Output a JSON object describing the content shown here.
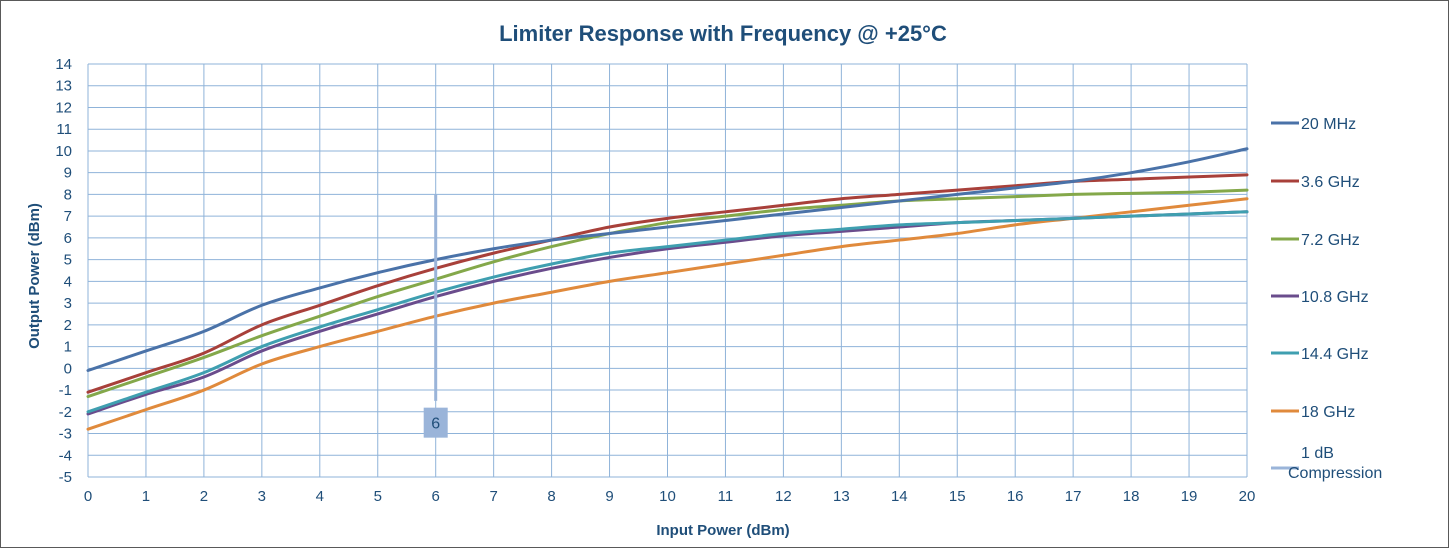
{
  "chart_data": {
    "type": "line",
    "title": "Limiter Response with Frequency @ +25°C",
    "xlabel": "Input Power (dBm)",
    "ylabel": "Output Power (dBm)",
    "xlim": [
      0,
      20
    ],
    "ylim": [
      -5,
      14
    ],
    "x_ticks": [
      0,
      1,
      2,
      3,
      4,
      5,
      6,
      7,
      8,
      9,
      10,
      11,
      12,
      13,
      14,
      15,
      16,
      17,
      18,
      19,
      20
    ],
    "y_ticks": [
      -5,
      -4,
      -3,
      -2,
      -1,
      0,
      1,
      2,
      3,
      4,
      5,
      6,
      7,
      8,
      9,
      10,
      11,
      12,
      13,
      14
    ],
    "grid": true,
    "legend_position": "right",
    "x": [
      0,
      1,
      2,
      3,
      4,
      5,
      6,
      7,
      8,
      9,
      10,
      11,
      12,
      13,
      14,
      15,
      16,
      17,
      18,
      19,
      20
    ],
    "series": [
      {
        "name": "20 MHz",
        "color": "#4a72a8",
        "values": [
          -0.1,
          0.8,
          1.7,
          2.9,
          3.7,
          4.4,
          5.0,
          5.5,
          5.9,
          6.2,
          6.5,
          6.8,
          7.1,
          7.4,
          7.7,
          8.0,
          8.3,
          8.6,
          9.0,
          9.5,
          10.1
        ]
      },
      {
        "name": "3.6 GHz",
        "color": "#a8403a",
        "values": [
          -1.1,
          -0.2,
          0.7,
          2.0,
          2.9,
          3.8,
          4.6,
          5.3,
          5.9,
          6.5,
          6.9,
          7.2,
          7.5,
          7.8,
          8.0,
          8.2,
          8.4,
          8.6,
          8.7,
          8.8,
          8.9
        ]
      },
      {
        "name": "7.2 GHz",
        "color": "#84a84a",
        "values": [
          -1.3,
          -0.4,
          0.5,
          1.5,
          2.4,
          3.3,
          4.1,
          4.9,
          5.6,
          6.2,
          6.7,
          7.0,
          7.3,
          7.5,
          7.7,
          7.8,
          7.9,
          8.0,
          8.05,
          8.1,
          8.2
        ]
      },
      {
        "name": "10.8 GHz",
        "color": "#6a4c8c",
        "values": [
          -2.1,
          -1.2,
          -0.4,
          0.8,
          1.7,
          2.5,
          3.3,
          4.0,
          4.6,
          5.1,
          5.5,
          5.8,
          6.1,
          6.3,
          6.5,
          6.7,
          6.8,
          6.9,
          7.0,
          7.1,
          7.2
        ]
      },
      {
        "name": "14.4 GHz",
        "color": "#3f9fb0",
        "values": [
          -2.0,
          -1.1,
          -0.2,
          1.0,
          1.9,
          2.7,
          3.5,
          4.2,
          4.8,
          5.3,
          5.6,
          5.9,
          6.2,
          6.4,
          6.6,
          6.7,
          6.8,
          6.9,
          7.0,
          7.1,
          7.2
        ]
      },
      {
        "name": "18 GHz",
        "color": "#e08a3c",
        "values": [
          -2.8,
          -1.9,
          -1.0,
          0.2,
          1.0,
          1.7,
          2.4,
          3.0,
          3.5,
          4.0,
          4.4,
          4.8,
          5.2,
          5.6,
          5.9,
          6.2,
          6.6,
          6.9,
          7.2,
          7.5,
          7.8
        ]
      }
    ],
    "compression_marker": {
      "name": "1 dB Compression",
      "legend_label_lines": [
        "1 dB",
        "Compression"
      ],
      "color": "#9ab4d9",
      "x": 6,
      "y_range": [
        -1.5,
        8
      ],
      "label": "6",
      "label_y": -2.5
    }
  }
}
